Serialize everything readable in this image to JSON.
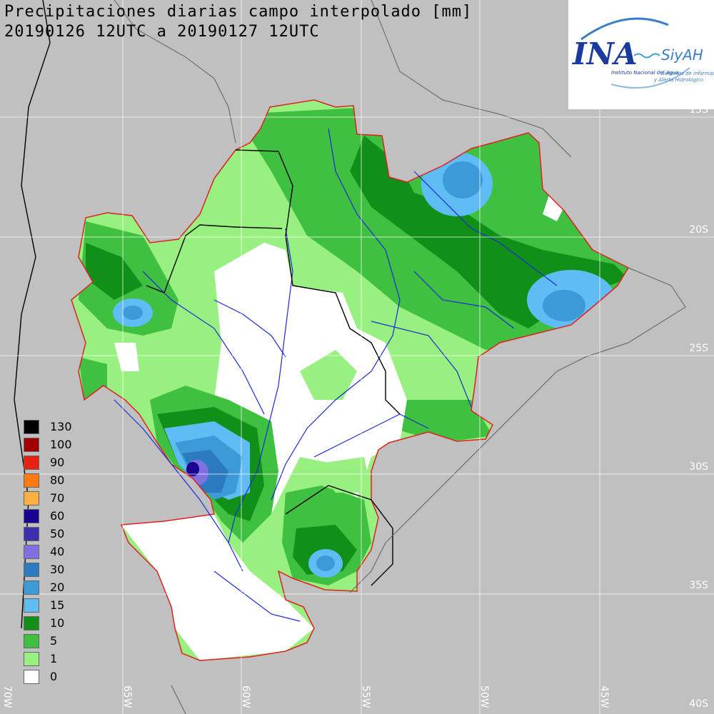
{
  "title": {
    "line1": "Precipitaciones diarias campo interpolado [mm]",
    "line2": "20190126 12UTC a 20190127 12UTC"
  },
  "logo": {
    "brand": "INA",
    "system": "SiyAH",
    "org": "Instituto Nacional del Agua",
    "subtitle_1": "Sistemas de información",
    "subtitle_2": "y Alerta Hidrológico"
  },
  "legend": [
    {
      "label": "130",
      "color": "#000000"
    },
    {
      "label": "100",
      "color": "#a00000"
    },
    {
      "label": "90",
      "color": "#e82010"
    },
    {
      "label": "80",
      "color": "#ff7a10"
    },
    {
      "label": "70",
      "color": "#ffb040"
    },
    {
      "label": "60",
      "color": "#1c0090"
    },
    {
      "label": "50",
      "color": "#3d30b0"
    },
    {
      "label": "40",
      "color": "#8070e0"
    },
    {
      "label": "30",
      "color": "#2c7ac0"
    },
    {
      "label": "20",
      "color": "#3c9ad8"
    },
    {
      "label": "15",
      "color": "#60bcf4"
    },
    {
      "label": "10",
      "color": "#109018"
    },
    {
      "label": "5",
      "color": "#40c040"
    },
    {
      "label": "1",
      "color": "#98f080"
    },
    {
      "label": "0",
      "color": "#ffffff"
    }
  ],
  "lat_labels": [
    "15S",
    "20S",
    "25S",
    "30S",
    "35S",
    "40S"
  ],
  "lon_labels": [
    "70W",
    "65W",
    "60W",
    "55W",
    "50W",
    "45W"
  ]
}
